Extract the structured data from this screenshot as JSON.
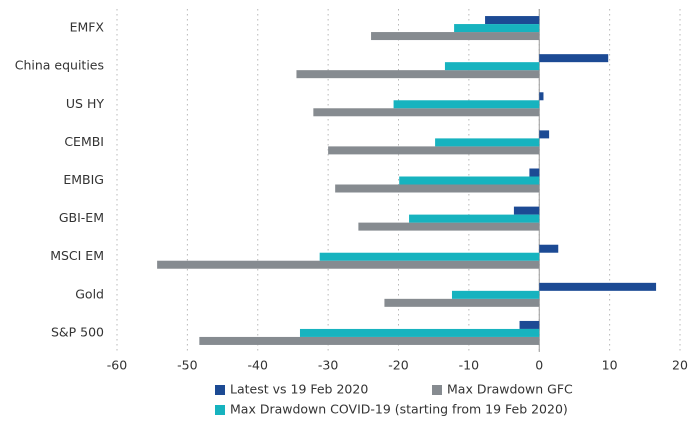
{
  "chart_data": {
    "type": "bar",
    "orientation": "horizontal",
    "categories": [
      "EMFX",
      "China equities",
      "US HY",
      "CEMBI",
      "EMBIG",
      "GBI-EM",
      "MSCI EM",
      "Gold",
      "S&P 500"
    ],
    "series": [
      {
        "name": "Latest vs 19 Feb 2020",
        "color": "#1c4a94",
        "values": [
          -7.7,
          9.8,
          0.6,
          1.4,
          -1.4,
          -3.6,
          2.7,
          16.6,
          -2.8
        ]
      },
      {
        "name": "Max Drawdown GFC",
        "color": "#868b90",
        "values": [
          -23.9,
          -34.5,
          -32.1,
          -30.0,
          -29.0,
          -25.7,
          -54.3,
          -22.0,
          -48.3
        ]
      },
      {
        "name": "Max Drawdown COVID-19 (starting from 19 Feb 2020)",
        "color": "#17b3bf",
        "values": [
          -12.1,
          -13.4,
          -20.7,
          -14.8,
          -19.9,
          -18.5,
          -31.2,
          -12.4,
          -34.0
        ]
      }
    ],
    "xlim": [
      -60,
      20
    ],
    "xticks": [
      -60,
      -50,
      -40,
      -30,
      -20,
      -10,
      0,
      10,
      20
    ],
    "grid": true,
    "legend": "bottom"
  }
}
